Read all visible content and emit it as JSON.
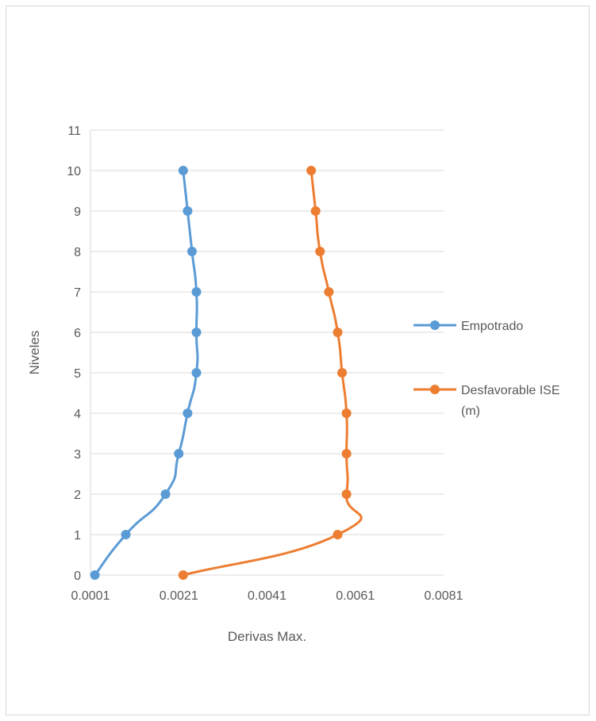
{
  "chart_data": {
    "type": "scatter",
    "title": "",
    "xlabel": "Derivas Max.",
    "ylabel": "Niveles",
    "xlim": [
      0.0001,
      0.0081
    ],
    "ylim": [
      0,
      11
    ],
    "x_ticks": [
      "0.0001",
      "0.0021",
      "0.0041",
      "0.0061",
      "0.0081"
    ],
    "y_ticks": [
      "0",
      "1",
      "2",
      "3",
      "4",
      "5",
      "6",
      "7",
      "8",
      "9",
      "10",
      "11"
    ],
    "grid": "horizontal",
    "legend_position": "right",
    "series": [
      {
        "name": "Empotrado",
        "color": "#5b9bd5",
        "x": [
          0.0002,
          0.0009,
          0.0018,
          0.0021,
          0.0023,
          0.0025,
          0.0025,
          0.0025,
          0.0024,
          0.0023,
          0.0022
        ],
        "y": [
          0,
          1,
          2,
          3,
          4,
          5,
          6,
          7,
          8,
          9,
          10
        ]
      },
      {
        "name": "Desfavorable ISE (m)",
        "name_lines": [
          "Desfavorable ISE",
          "(m)"
        ],
        "color": "#ed7d31",
        "x": [
          0.0022,
          0.0057,
          0.0059,
          0.0059,
          0.0059,
          0.0058,
          0.0057,
          0.0055,
          0.0053,
          0.0052,
          0.0051
        ],
        "y": [
          0,
          1,
          2,
          3,
          4,
          5,
          6,
          7,
          8,
          9,
          10
        ]
      }
    ]
  }
}
